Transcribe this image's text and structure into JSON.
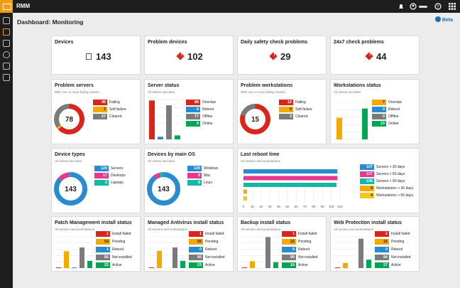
{
  "app": {
    "name": "RMM"
  },
  "page": {
    "title": "Dashboard: Monitoring",
    "beta": "Beta"
  },
  "colors": {
    "red": "#d9261c",
    "orange": "#f5a800",
    "gray": "#7b7b7b",
    "green": "#00a651",
    "blue": "#2b8bd0",
    "pink": "#e6398e",
    "teal": "#15b8a6",
    "yellow": "#f5c518"
  },
  "stats": [
    {
      "title": "Devices",
      "value": "143",
      "icon": "devices-icon"
    },
    {
      "title": "Problem devices",
      "value": "102",
      "icon": "alert-icon"
    },
    {
      "title": "Daily safety check problems",
      "value": "29",
      "icon": "alert-icon"
    },
    {
      "title": "24x7 check problems",
      "value": "44",
      "icon": "alert-icon"
    }
  ],
  "problem_servers": {
    "title": "Problem servers",
    "subtitle": "With one or more failing checks",
    "center": "78",
    "legend": [
      {
        "v": "49",
        "l": "Failing"
      },
      {
        "v": "2",
        "l": "Soft failure"
      },
      {
        "v": "27",
        "l": "Cleared"
      }
    ]
  },
  "server_status": {
    "title": "Server status",
    "subtitle": "All clients and sites",
    "legend": [
      {
        "v": "88",
        "l": "Overdue"
      },
      {
        "v": "6",
        "l": "Reboot"
      },
      {
        "v": "77",
        "l": "Offline"
      },
      {
        "v": "9",
        "l": "Online"
      }
    ]
  },
  "problem_ws": {
    "title": "Problem workstations",
    "subtitle": "With one or more failing checks",
    "center": "15",
    "legend": [
      {
        "v": "12",
        "l": "Failing"
      },
      {
        "v": "0",
        "l": "Soft failure"
      },
      {
        "v": "3",
        "l": "Cleared"
      }
    ]
  },
  "ws_status": {
    "title": "Workstations status",
    "subtitle": "All clients and sites",
    "legend": [
      {
        "v": "7",
        "l": "Overdue"
      },
      {
        "v": "0",
        "l": "Reboot"
      },
      {
        "v": "0",
        "l": "Offline"
      },
      {
        "v": "10",
        "l": "Online"
      }
    ]
  },
  "device_types": {
    "title": "Device types",
    "subtitle": "All clients and sites",
    "center": "143",
    "legend": [
      {
        "v": "124",
        "l": "Servers"
      },
      {
        "v": "17",
        "l": "Desktops"
      },
      {
        "v": "2",
        "l": "Laptops"
      }
    ]
  },
  "devices_os": {
    "title": "Devices by main OS",
    "subtitle": "All clients and sites",
    "center": "143",
    "legend": [
      {
        "v": "129",
        "l": "Windows"
      },
      {
        "v": "8",
        "l": "Mac"
      },
      {
        "v": "6",
        "l": "Linux"
      }
    ]
  },
  "last_reboot": {
    "title": "Last reboot time",
    "subtitle": "All servers and workstations",
    "legend": [
      {
        "v": "107",
        "l": "Servers > 30 days"
      },
      {
        "v": "107",
        "l": "Servers > 60 days"
      },
      {
        "v": "106",
        "l": "Servers > 90 days"
      },
      {
        "v": "4",
        "l": "Workstations > 30 days"
      },
      {
        "v": "4",
        "l": "Workstations > 60 days"
      }
    ],
    "ticks": [
      "0",
      "10",
      "20",
      "30",
      "40",
      "50",
      "60",
      "70",
      "80",
      "90",
      "100",
      "110"
    ]
  },
  "installs": [
    {
      "title": "Patch Management install status",
      "subtitle": "All servers and workstations",
      "legend": [
        {
          "v": "1",
          "l": "Install failed"
        },
        {
          "v": "54",
          "l": "Pending"
        },
        {
          "v": "1",
          "l": "Reboot"
        },
        {
          "v": "66",
          "l": "Not installed"
        },
        {
          "v": "23",
          "l": "Active"
        }
      ]
    },
    {
      "title": "Managed Antivirus install status",
      "subtitle": "All servers and workstations",
      "legend": [
        {
          "v": "1",
          "l": "Install failed"
        },
        {
          "v": "55",
          "l": "Pending"
        },
        {
          "v": "0",
          "l": "Reboot"
        },
        {
          "v": "66",
          "l": "Not installed"
        },
        {
          "v": "23",
          "l": "Active"
        }
      ]
    },
    {
      "title": "Backup install status",
      "subtitle": "All servers and workstations",
      "legend": [
        {
          "v": "1",
          "l": "Install failed"
        },
        {
          "v": "22",
          "l": "Pending"
        },
        {
          "v": "0",
          "l": "Reboot"
        },
        {
          "v": "99",
          "l": "Not installed"
        },
        {
          "v": "19",
          "l": "Active"
        }
      ]
    },
    {
      "title": "Web Protection install status",
      "subtitle": "All servers and workstations",
      "legend": [
        {
          "v": "1",
          "l": "Install failed"
        },
        {
          "v": "16",
          "l": "Pending"
        },
        {
          "v": "0",
          "l": "Reboot"
        },
        {
          "v": "94",
          "l": "Not installed"
        },
        {
          "v": "27",
          "l": "Active"
        }
      ]
    }
  ]
}
